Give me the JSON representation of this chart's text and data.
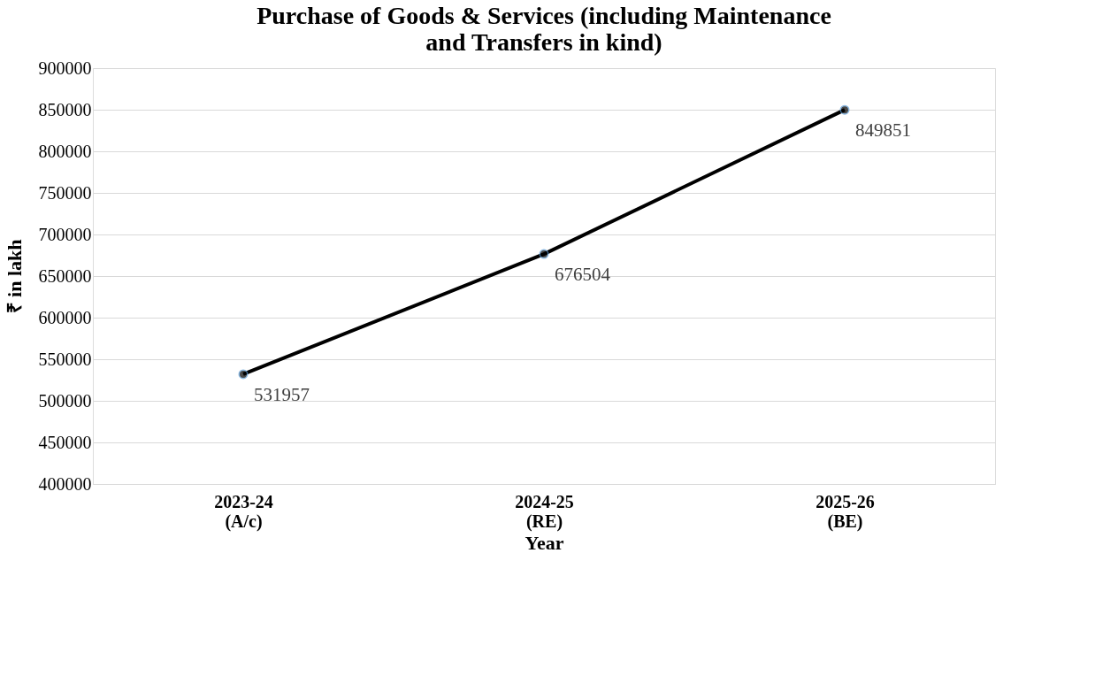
{
  "chart_data": {
    "type": "line",
    "title": [
      "Purchase of Goods & Services (including Maintenance",
      "and Transfers in kind)"
    ],
    "xlabel": "Year",
    "ylabel": "₹ in lakh",
    "categories": [
      "2023-24\n(A/c)",
      "2024-25\n(RE)",
      "2025-26\n(BE)"
    ],
    "series": [
      {
        "color": "#000000",
        "values": [
          531957,
          676504,
          849851
        ]
      }
    ],
    "ylim": [
      400000,
      900000
    ],
    "yticks": [
      400000,
      450000,
      500000,
      550000,
      600000,
      650000,
      700000,
      750000,
      800000,
      850000,
      900000
    ],
    "grid": "y",
    "marker": "circle",
    "line_style": "solid",
    "data_labels": true,
    "legend": false
  }
}
